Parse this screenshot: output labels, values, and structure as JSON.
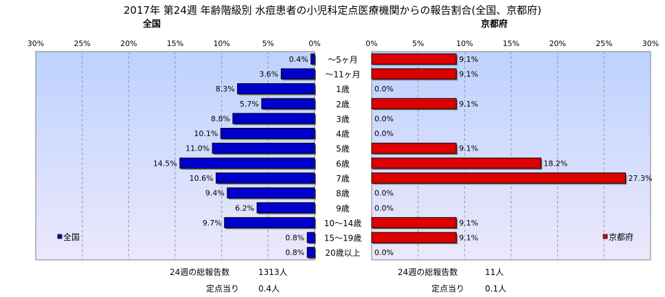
{
  "chart_data": {
    "type": "bar",
    "title": "2017年 第24週 年齢階級別 水痘患者の小児科定点医療機関からの報告割合(全国、京都府)",
    "categories": [
      "～5ヶ月",
      "～11ヶ月",
      "1歳",
      "2歳",
      "3歳",
      "4歳",
      "5歳",
      "6歳",
      "7歳",
      "8歳",
      "9歳",
      "10～14歳",
      "15～19歳",
      "20歳以上"
    ],
    "xlim": [
      0,
      30
    ],
    "ticks": [
      "0%",
      "5%",
      "10%",
      "15%",
      "20%",
      "25%",
      "30%"
    ],
    "grid": true,
    "panels": [
      {
        "name": "全国",
        "title": "全国",
        "direction": "reversed",
        "color": "#0000cc",
        "values": [
          0.4,
          3.6,
          8.3,
          5.7,
          8.8,
          10.1,
          11.0,
          14.5,
          10.6,
          9.4,
          6.2,
          9.7,
          0.8,
          0.8
        ],
        "labels": [
          "0.4%",
          "3.6%",
          "8.3%",
          "5.7%",
          "8.8%",
          "10.1%",
          "11.0%",
          "14.5%",
          "10.6%",
          "9.4%",
          "6.2%",
          "9.7%",
          "0.8%",
          "0.8%"
        ],
        "legend": "全国",
        "legend_placement": "bottom-left"
      },
      {
        "name": "京都府",
        "title": "京都府",
        "direction": "normal",
        "color": "#dd0000",
        "values": [
          9.1,
          9.1,
          0.0,
          9.1,
          0.0,
          0.0,
          9.1,
          18.2,
          27.3,
          0.0,
          0.0,
          9.1,
          9.1,
          0.0
        ],
        "labels": [
          "9.1%",
          "9.1%",
          "0.0%",
          "9.1%",
          "0.0%",
          "0.0%",
          "9.1%",
          "18.2%",
          "27.3%",
          "0.0%",
          "0.0%",
          "9.1%",
          "9.1%",
          "0.0%"
        ],
        "legend": "京都府",
        "legend_placement": "bottom-right"
      }
    ]
  },
  "stats": {
    "national": {
      "total_label": "24週の総報告数",
      "total_value": "1313人",
      "per_label": "定点当り",
      "per_value": "0.4人"
    },
    "kyoto": {
      "total_label": "24週の総報告数",
      "total_value": "11人",
      "per_label": "定点当り",
      "per_value": "0.1人"
    }
  }
}
